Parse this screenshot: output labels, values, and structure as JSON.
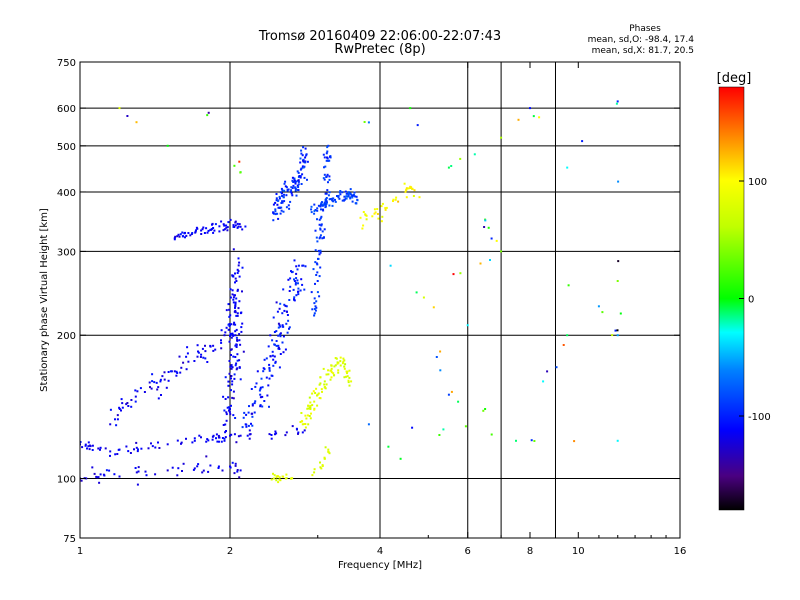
{
  "chart_data": {
    "type": "scatter",
    "title": "Tromsø 20160409 22:06:00-22:07:43",
    "subtitle": "RwPretec (8p)",
    "xlabel": "Frequency [MHz]",
    "ylabel": "Stationary phase Virtual Height [km]",
    "xscale": "log",
    "yscale": "log",
    "xlim": [
      1,
      16
    ],
    "ylim": [
      75,
      750
    ],
    "x_ticks": [
      {
        "value": 1,
        "label": "1"
      },
      {
        "value": 2,
        "label": "2"
      },
      {
        "value": 4,
        "label": "4"
      },
      {
        "value": 6,
        "label": "6"
      },
      {
        "value": 8,
        "label": "8"
      },
      {
        "value": 10,
        "label": "10"
      },
      {
        "value": 16,
        "label": "16"
      }
    ],
    "y_ticks": [
      {
        "value": 75,
        "label": "75"
      },
      {
        "value": 100,
        "label": "100"
      },
      {
        "value": 200,
        "label": "200"
      },
      {
        "value": 300,
        "label": "300"
      },
      {
        "value": 400,
        "label": "400"
      },
      {
        "value": 500,
        "label": "500"
      },
      {
        "value": 600,
        "label": "600"
      },
      {
        "value": 750,
        "label": "750"
      }
    ],
    "x_gridlines": [
      2,
      4,
      6,
      7,
      9
    ],
    "y_gridlines": [
      100,
      200,
      300,
      400,
      500,
      600
    ],
    "grid": true,
    "phases": {
      "title": "Phases",
      "line_o": "mean, sd,O: -98.4, 17.4",
      "line_x": "mean, sd,X:  81.7, 20.5"
    },
    "colorbar": {
      "label": "[deg]",
      "range": [
        -180,
        180
      ],
      "ticks": [
        {
          "value": 100,
          "label": "100"
        },
        {
          "value": 0,
          "label": "0"
        },
        {
          "value": -100,
          "label": "-100"
        }
      ],
      "stops": [
        {
          "value": -180,
          "color": "#000000"
        },
        {
          "value": -150,
          "color": "#4a0080"
        },
        {
          "value": -110,
          "color": "#0000ff"
        },
        {
          "value": -60,
          "color": "#0080ff"
        },
        {
          "value": -30,
          "color": "#00ffff"
        },
        {
          "value": 0,
          "color": "#00ff00"
        },
        {
          "value": 60,
          "color": "#c0ff00"
        },
        {
          "value": 100,
          "color": "#ffff00"
        },
        {
          "value": 140,
          "color": "#ff8000"
        },
        {
          "value": 180,
          "color": "#ff0000"
        }
      ]
    },
    "clusters": [
      {
        "name": "o-low-trace",
        "phase": -115,
        "spread": 12,
        "points": [
          [
            1.0,
            118
          ],
          [
            1.05,
            117
          ],
          [
            1.1,
            116
          ],
          [
            1.15,
            114
          ],
          [
            1.2,
            115
          ],
          [
            1.3,
            116
          ],
          [
            1.4,
            117
          ],
          [
            1.5,
            118
          ],
          [
            1.6,
            119
          ],
          [
            1.7,
            120
          ],
          [
            1.8,
            121
          ],
          [
            1.9,
            122
          ],
          [
            2.0,
            123
          ],
          [
            2.1,
            123
          ],
          [
            2.2,
            124
          ],
          [
            2.4,
            124
          ],
          [
            2.6,
            125
          ],
          [
            2.8,
            125
          ]
        ],
        "count": 70,
        "jitter": [
          0.02,
          0.03
        ]
      },
      {
        "name": "o-lower-band",
        "phase": -118,
        "spread": 15,
        "points": [
          [
            1.0,
            100
          ],
          [
            1.1,
            102
          ],
          [
            1.2,
            101
          ],
          [
            1.3,
            103
          ],
          [
            1.5,
            104
          ],
          [
            1.7,
            105
          ],
          [
            1.9,
            106
          ],
          [
            2.0,
            106
          ],
          [
            2.1,
            104
          ]
        ],
        "count": 45,
        "jitter": [
          0.03,
          0.04
        ]
      },
      {
        "name": "o-rising-cusp",
        "phase": -115,
        "spread": 15,
        "points": [
          [
            1.15,
            130
          ],
          [
            1.25,
            142
          ],
          [
            1.35,
            152
          ],
          [
            1.45,
            160
          ],
          [
            1.55,
            168
          ],
          [
            1.65,
            176
          ],
          [
            1.75,
            182
          ],
          [
            1.85,
            190
          ],
          [
            1.95,
            200
          ],
          [
            2.0,
            210
          ],
          [
            2.05,
            225
          ]
        ],
        "count": 90,
        "jitter": [
          0.04,
          0.06
        ]
      },
      {
        "name": "o-vertical-2mhz",
        "phase": -112,
        "spread": 15,
        "points": [
          [
            1.95,
            120
          ],
          [
            2.0,
            140
          ],
          [
            2.02,
            160
          ],
          [
            2.05,
            180
          ],
          [
            2.03,
            200
          ],
          [
            2.05,
            230
          ],
          [
            2.06,
            260
          ],
          [
            2.08,
            290
          ]
        ],
        "count": 120,
        "jitter": [
          0.035,
          0.05
        ]
      },
      {
        "name": "o-cloud-2-2.6",
        "phase": -100,
        "spread": 20,
        "points": [
          [
            2.15,
            130
          ],
          [
            2.3,
            150
          ],
          [
            2.4,
            170
          ],
          [
            2.5,
            190
          ],
          [
            2.55,
            210
          ],
          [
            2.6,
            230
          ],
          [
            2.7,
            260
          ],
          [
            2.75,
            280
          ]
        ],
        "count": 140,
        "jitter": [
          0.05,
          0.06
        ]
      },
      {
        "name": "o-F-layer-2mhz",
        "phase": -112,
        "spread": 12,
        "points": [
          [
            1.55,
            320
          ],
          [
            1.65,
            328
          ],
          [
            1.75,
            332
          ],
          [
            1.85,
            336
          ],
          [
            1.95,
            340
          ],
          [
            2.05,
            345
          ],
          [
            2.1,
            338
          ]
        ],
        "count": 60,
        "jitter": [
          0.03,
          0.03
        ]
      },
      {
        "name": "o-F-layer-top",
        "phase": -95,
        "spread": 20,
        "points": [
          [
            2.45,
            360
          ],
          [
            2.55,
            380
          ],
          [
            2.65,
            400
          ],
          [
            2.75,
            420
          ],
          [
            2.8,
            450
          ],
          [
            2.85,
            480
          ]
        ],
        "count": 110,
        "jitter": [
          0.03,
          0.05
        ]
      },
      {
        "name": "o-F-layer-hi",
        "phase": -85,
        "spread": 15,
        "points": [
          [
            2.95,
            360
          ],
          [
            3.1,
            380
          ],
          [
            3.3,
            390
          ],
          [
            3.5,
            395
          ],
          [
            3.6,
            385
          ]
        ],
        "count": 80,
        "jitter": [
          0.03,
          0.03
        ]
      },
      {
        "name": "o-vertical-3",
        "phase": -90,
        "spread": 15,
        "points": [
          [
            2.95,
            220
          ],
          [
            3.0,
            260
          ],
          [
            3.02,
            300
          ],
          [
            3.05,
            340
          ],
          [
            3.1,
            380
          ],
          [
            3.12,
            430
          ],
          [
            3.15,
            500
          ]
        ],
        "count": 80,
        "jitter": [
          0.02,
          0.05
        ]
      },
      {
        "name": "x-yellow-block",
        "phase": 80,
        "spread": 20,
        "points": [
          [
            2.8,
            130
          ],
          [
            2.9,
            140
          ],
          [
            3.0,
            150
          ],
          [
            3.1,
            160
          ],
          [
            3.2,
            170
          ],
          [
            3.3,
            175
          ],
          [
            3.4,
            170
          ],
          [
            3.5,
            160
          ]
        ],
        "count": 90,
        "jitter": [
          0.03,
          0.05
        ]
      },
      {
        "name": "x-yellow-low",
        "phase": 78,
        "spread": 15,
        "points": [
          [
            2.45,
            100
          ],
          [
            2.55,
            101
          ],
          [
            2.65,
            100
          ],
          [
            3.05,
            105
          ],
          [
            3.1,
            110
          ],
          [
            3.15,
            115
          ]
        ],
        "count": 30,
        "jitter": [
          0.02,
          0.02
        ]
      },
      {
        "name": "x-yellow-F",
        "phase": 100,
        "spread": 20,
        "points": [
          [
            3.7,
            340
          ],
          [
            3.9,
            360
          ],
          [
            4.1,
            370
          ],
          [
            4.3,
            385
          ],
          [
            4.5,
            400
          ],
          [
            4.6,
            410
          ],
          [
            4.8,
            390
          ]
        ],
        "count": 35,
        "jitter": [
          0.03,
          0.04
        ]
      },
      {
        "name": "scattered-noise",
        "phase": 0,
        "spread": 180,
        "points": [
          [
            1.2,
            600
          ],
          [
            1.5,
            500
          ],
          [
            1.8,
            580
          ],
          [
            2.1,
            440
          ],
          [
            3.8,
            560
          ],
          [
            4.6,
            600
          ],
          [
            5.5,
            450
          ],
          [
            6.2,
            480
          ],
          [
            7.0,
            520
          ],
          [
            8.0,
            600
          ],
          [
            9.5,
            450
          ],
          [
            12,
            620
          ],
          [
            12,
            260
          ],
          [
            12,
            200
          ],
          [
            11,
            230
          ],
          [
            6.5,
            350
          ],
          [
            7.0,
            300
          ],
          [
            5.8,
            270
          ],
          [
            4.2,
            280
          ],
          [
            4.9,
            240
          ],
          [
            6.0,
            210
          ],
          [
            5.2,
            180
          ],
          [
            5.5,
            150
          ],
          [
            6.5,
            140
          ],
          [
            7.5,
            120
          ],
          [
            12,
            120
          ],
          [
            3.8,
            130
          ],
          [
            4.4,
            110
          ],
          [
            8.5,
            160
          ],
          [
            9.5,
            200
          ]
        ],
        "count": 50,
        "jitter": [
          0.02,
          0.02
        ]
      }
    ]
  }
}
